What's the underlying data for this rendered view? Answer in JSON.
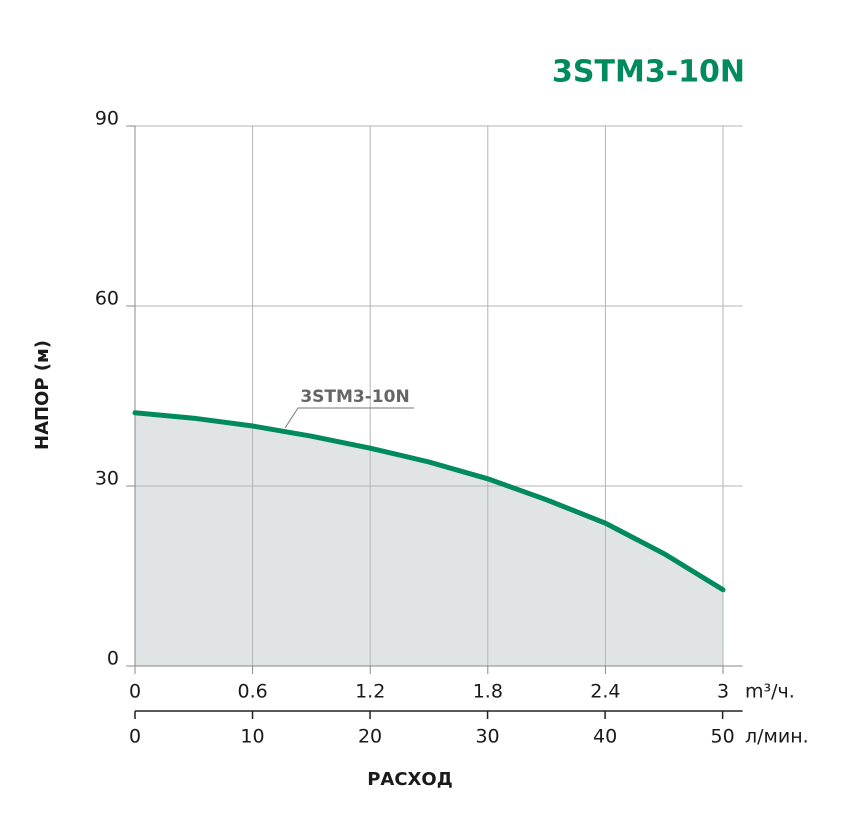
{
  "chart_data": {
    "type": "line",
    "title": "3STM3-10N",
    "ylabel": "НАПОР (м)",
    "xlabel": "РАСХОД",
    "x_unit": "m³/ч.",
    "x2_unit": "л/мин.",
    "x": [
      0,
      0.3,
      0.6,
      0.9,
      1.2,
      1.5,
      1.8,
      2.1,
      2.4,
      2.7,
      3
    ],
    "series": [
      {
        "name": "3STM3-10N",
        "color": "#008a5e",
        "values": [
          42.2,
          41.3,
          40,
          38.3,
          36.3,
          34,
          31.2,
          27.7,
          23.8,
          18.7,
          12.7
        ]
      }
    ],
    "area_color": "#e0e4e5",
    "grid": true,
    "xlim": [
      0,
      3.1
    ],
    "xticks": [
      0,
      0.6,
      1.2,
      1.8,
      2.4,
      3
    ],
    "x2lim": [
      0,
      51.7
    ],
    "x2ticks": [
      0,
      10,
      20,
      30,
      40,
      50
    ],
    "ylim": [
      0,
      90
    ],
    "yticks": [
      0,
      30,
      60,
      90
    ]
  }
}
